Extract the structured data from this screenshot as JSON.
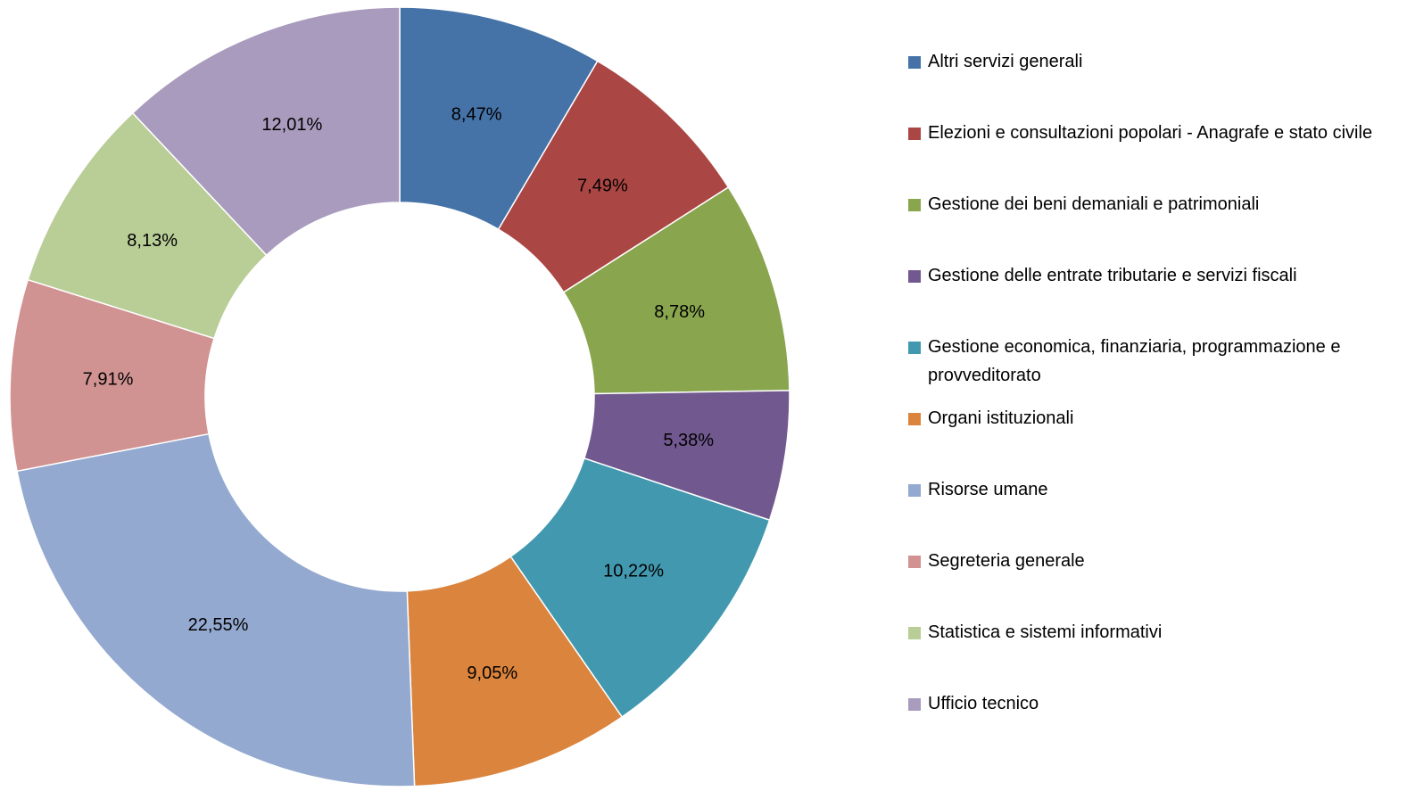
{
  "chart_data": {
    "type": "donut",
    "categories": [
      "Altri servizi generali",
      "Elezioni e consultazioni popolari - Anagrafe e stato civile",
      "Gestione dei beni demaniali e patrimoniali",
      "Gestione delle entrate tributarie e servizi fiscali",
      "Gestione economica, finanziaria, programmazione e provveditorato",
      "Organi istituzionali",
      "Risorse umane",
      "Segreteria generale",
      "Statistica e sistemi informativi",
      "Ufficio tecnico"
    ],
    "values": [
      8.47,
      7.49,
      8.78,
      5.38,
      10.22,
      9.05,
      22.55,
      7.91,
      8.13,
      12.01
    ],
    "value_labels": [
      "8,47%",
      "7,49%",
      "8,78%",
      "5,38%",
      "10,22%",
      "9,05%",
      "22,55%",
      "7,91%",
      "8,13%",
      "12,01%"
    ],
    "colors": [
      "#4572a7",
      "#aa4643",
      "#89a54e",
      "#71588f",
      "#4198af",
      "#db843d",
      "#93a9cf",
      "#d19392",
      "#b9cd96",
      "#a99bbd"
    ],
    "legend": "right"
  }
}
